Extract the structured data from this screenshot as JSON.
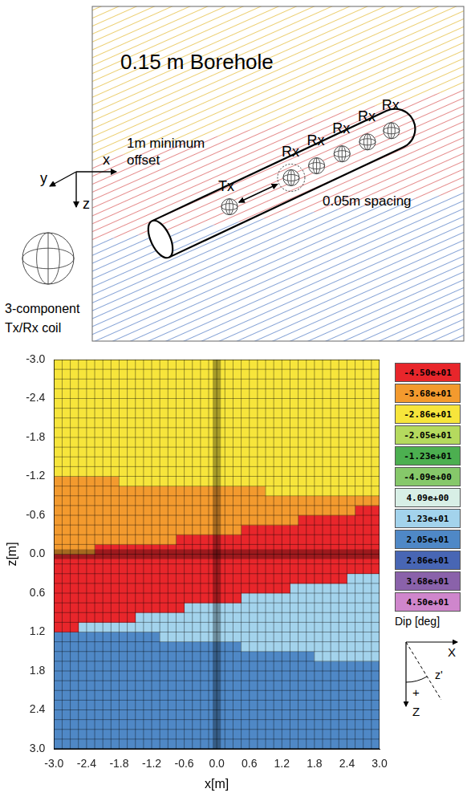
{
  "chart_data": {
    "type": "heatmap",
    "x_label": "x[m]",
    "y_label": "z[m]",
    "xlim": [
      -3,
      3
    ],
    "ylim": [
      -3,
      3
    ],
    "xticks": [
      {
        "value": -3,
        "label": "-3.0"
      },
      {
        "value": -2.4,
        "label": "-2.4"
      },
      {
        "value": -1.8,
        "label": "-1.8"
      },
      {
        "value": -1.2,
        "label": "-1.2"
      },
      {
        "value": -0.6,
        "label": "-0.6"
      },
      {
        "value": 0,
        "label": "0.0"
      },
      {
        "value": 0.6,
        "label": "0.6"
      },
      {
        "value": 1.2,
        "label": "1.2"
      },
      {
        "value": 1.8,
        "label": "1.8"
      },
      {
        "value": 2.4,
        "label": "2.4"
      },
      {
        "value": 3,
        "label": "3.0"
      }
    ],
    "yticks": [
      {
        "value": -3,
        "label": "-3.0"
      },
      {
        "value": -2.4,
        "label": "-2.4"
      },
      {
        "value": -1.8,
        "label": "-1.8"
      },
      {
        "value": -1.2,
        "label": "-1.2"
      },
      {
        "value": -0.6,
        "label": "-0.6"
      },
      {
        "value": 0,
        "label": "0.0"
      },
      {
        "value": 0.6,
        "label": "0.6"
      },
      {
        "value": 1.2,
        "label": "1.2"
      },
      {
        "value": 1.8,
        "label": "1.8"
      },
      {
        "value": 2.4,
        "label": "2.4"
      },
      {
        "value": 3,
        "label": "3.0"
      }
    ],
    "grid": true,
    "cell_size": 0.15,
    "x": [
      -2.925,
      -2.775,
      -2.625,
      -2.475,
      -2.325,
      -2.175,
      -2.025,
      -1.875,
      -1.725,
      -1.575,
      -1.425,
      -1.275,
      -1.125,
      -0.975,
      -0.825,
      -0.675,
      -0.525,
      -0.375,
      -0.225,
      -0.075,
      0.075,
      0.225,
      0.375,
      0.525,
      0.675,
      0.825,
      0.975,
      1.125,
      1.275,
      1.425,
      1.575,
      1.725,
      1.875,
      2.025,
      2.175,
      2.325,
      2.475,
      2.625,
      2.775,
      2.925
    ],
    "layer_values": [
      -28.6,
      -36.8,
      -45,
      12.3,
      20.5
    ],
    "boundaries": [
      [
        -1.2,
        -1.2,
        -1.2,
        -1.2,
        -1.2,
        -1.2,
        -1.2,
        -1.2,
        -1.05,
        -1.05,
        -1.05,
        -1.05,
        -1.05,
        -1.05,
        -1.05,
        -1.05,
        -1.05,
        -1.05,
        -1.05,
        -1.05,
        -1.05,
        -1.05,
        -1.05,
        -1.05,
        -1.05,
        -1.05,
        -0.9,
        -0.9,
        -0.9,
        -0.9,
        -0.9,
        -0.9,
        -0.9,
        -0.9,
        -0.9,
        -0.9,
        -0.9,
        -0.9,
        -0.9,
        -0.9
      ],
      [
        0,
        0,
        0,
        0,
        0,
        -0.15,
        -0.15,
        -0.15,
        -0.15,
        -0.15,
        -0.15,
        -0.15,
        -0.15,
        -0.15,
        -0.15,
        -0.3,
        -0.3,
        -0.3,
        -0.3,
        -0.3,
        -0.3,
        -0.3,
        -0.3,
        -0.45,
        -0.45,
        -0.45,
        -0.45,
        -0.45,
        -0.45,
        -0.45,
        -0.6,
        -0.6,
        -0.6,
        -0.6,
        -0.6,
        -0.6,
        -0.6,
        -0.75,
        -0.75,
        -0.75
      ],
      [
        1.2,
        1.2,
        1.2,
        1.05,
        1.05,
        1.05,
        1.05,
        1.05,
        1.05,
        1.05,
        0.9,
        0.9,
        0.9,
        0.9,
        0.9,
        0.9,
        0.75,
        0.75,
        0.75,
        0.75,
        0.75,
        0.75,
        0.75,
        0.6,
        0.6,
        0.6,
        0.6,
        0.6,
        0.6,
        0.45,
        0.45,
        0.45,
        0.45,
        0.45,
        0.45,
        0.45,
        0.3,
        0.3,
        0.3,
        0.3
      ],
      [
        1.2,
        1.2,
        1.2,
        1.2,
        1.2,
        1.2,
        1.2,
        1.2,
        1.2,
        1.2,
        1.2,
        1.2,
        1.2,
        1.35,
        1.35,
        1.35,
        1.35,
        1.35,
        1.35,
        1.35,
        1.35,
        1.35,
        1.35,
        1.5,
        1.5,
        1.5,
        1.5,
        1.5,
        1.5,
        1.5,
        1.5,
        1.5,
        1.65,
        1.65,
        1.65,
        1.65,
        1.65,
        1.65,
        1.65,
        1.65
      ]
    ],
    "borehole_x": 0,
    "borehole_z": 0,
    "colorbar": {
      "title": "Dip [deg]",
      "values": [
        -45,
        -36.8,
        -28.6,
        -20.5,
        -12.3,
        -4.09,
        4.09,
        12.3,
        20.5,
        28.6,
        36.8,
        45
      ],
      "labels": [
        "-4.50e+01",
        "-3.68e+01",
        "-2.86e+01",
        "-2.05e+01",
        "-1.23e+01",
        "-4.09e+00",
        "4.09e+00",
        "1.23e+01",
        "2.05e+01",
        "2.86e+01",
        "3.68e+01",
        "4.50e+01"
      ],
      "colors": [
        "#e8262b",
        "#f39a2e",
        "#f7e53b",
        "#b5da5e",
        "#4caf50",
        "#86c86a",
        "#d8efe6",
        "#a3d3ec",
        "#4f88c6",
        "#4866b4",
        "#8a62aa",
        "#cf86cc"
      ]
    },
    "dip_icon": {
      "x": "X",
      "z": "Z",
      "z_prime": "z'",
      "sign": "+"
    }
  },
  "diagram": {
    "title": "0.15 m Borehole",
    "offset_label": [
      "1m minimum",
      "offset"
    ],
    "spacing_label": "0.05m spacing",
    "tx": "Tx",
    "rx": [
      "Rx",
      "Rx",
      "Rx",
      "Rx",
      "Rx"
    ],
    "axes": {
      "x": "x",
      "y": "y",
      "z": "z"
    },
    "coil_label": [
      "3-component",
      "Tx/Rx coil"
    ]
  }
}
